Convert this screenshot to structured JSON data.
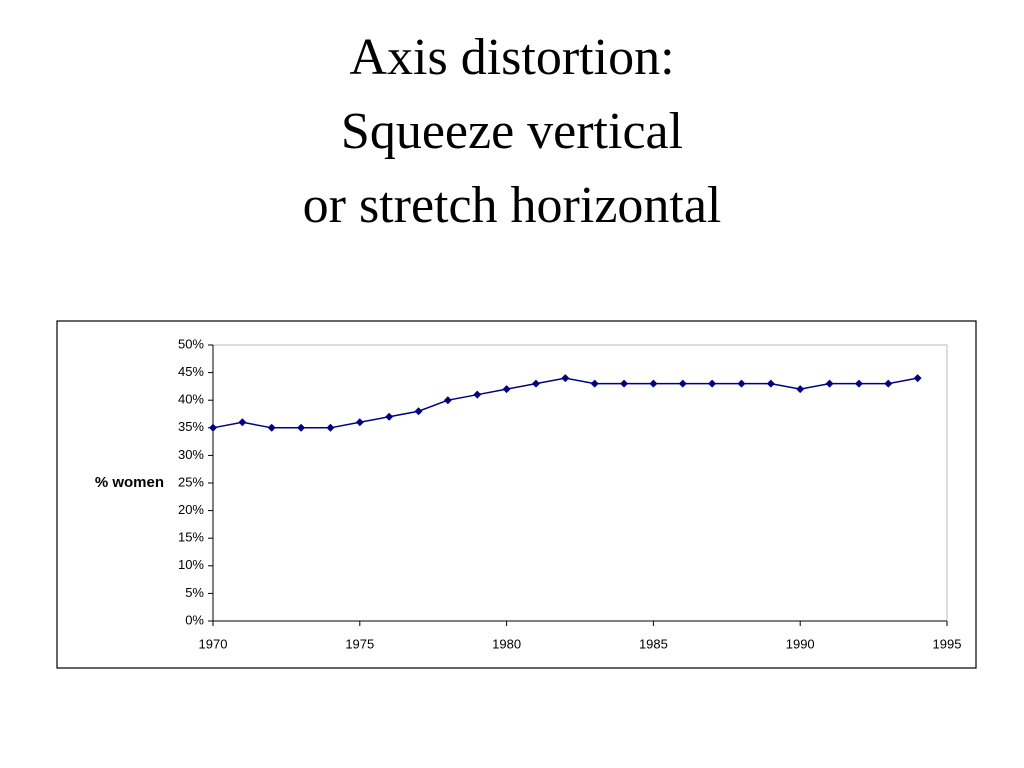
{
  "chart_data": {
    "type": "line",
    "title": [
      "Axis distortion:",
      "Squeeze vertical",
      "or stretch horizontal"
    ],
    "y_label": "% women",
    "x": [
      1970,
      1971,
      1972,
      1973,
      1974,
      1975,
      1976,
      1977,
      1978,
      1979,
      1980,
      1981,
      1982,
      1983,
      1984,
      1985,
      1986,
      1987,
      1988,
      1989,
      1990,
      1991,
      1992,
      1993,
      1994
    ],
    "values": [
      35,
      36,
      35,
      35,
      35,
      36,
      37,
      38,
      40,
      41,
      42,
      43,
      44,
      43,
      43,
      43,
      43,
      43,
      43,
      43,
      42,
      43,
      43,
      43,
      44
    ],
    "color": "#000080",
    "xlim": [
      1970,
      1995
    ],
    "xticks": [
      1970,
      1975,
      1980,
      1985,
      1990,
      1995
    ],
    "ylim": [
      0,
      50
    ],
    "yticks": [
      {
        "value": 0,
        "label": "0%"
      },
      {
        "value": 5,
        "label": "5%"
      },
      {
        "value": 10,
        "label": "10%"
      },
      {
        "value": 15,
        "label": "15%"
      },
      {
        "value": 20,
        "label": "20%"
      },
      {
        "value": 25,
        "label": "25%"
      },
      {
        "value": 30,
        "label": "30%"
      },
      {
        "value": 35,
        "label": "35%"
      },
      {
        "value": 40,
        "label": "40%"
      },
      {
        "value": 45,
        "label": "45%"
      },
      {
        "value": 50,
        "label": "50%"
      }
    ]
  }
}
